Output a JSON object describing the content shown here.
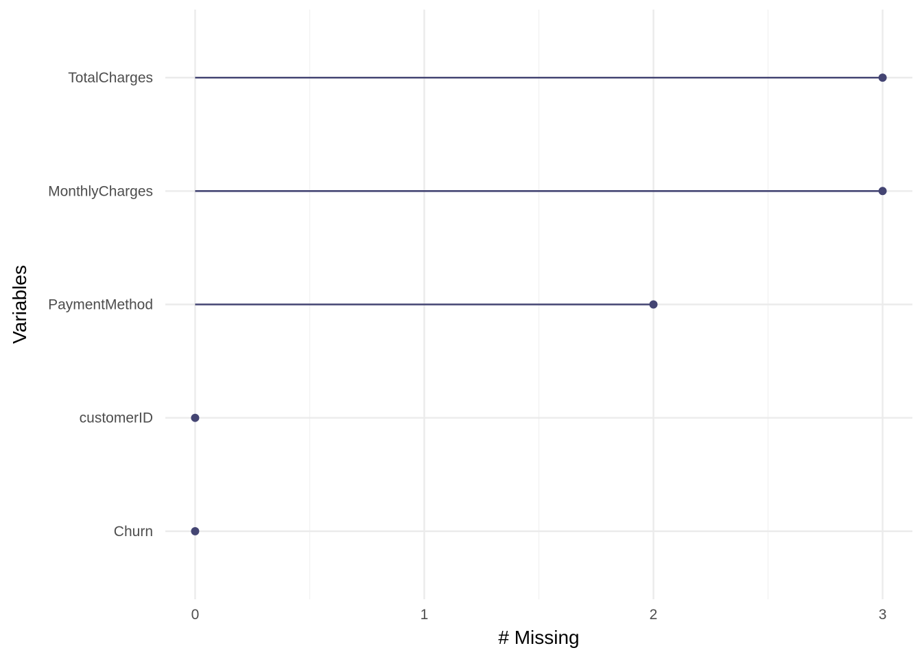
{
  "chart_data": {
    "type": "lollipop",
    "title": "",
    "xlabel": "# Missing",
    "ylabel": "Variables",
    "xlim": [
      -0.13,
      3.13
    ],
    "x_ticks": [
      0,
      1,
      2,
      3
    ],
    "x_tick_labels": [
      "0",
      "1",
      "2",
      "3"
    ],
    "x_minor_ticks": [
      0.5,
      1.5,
      2.5
    ],
    "grid": true,
    "legend": "none",
    "categories": [
      "TotalCharges",
      "MonthlyCharges",
      "PaymentMethod",
      "customerID",
      "Churn"
    ],
    "values": [
      3,
      3,
      2,
      0,
      0
    ],
    "colors": {
      "mark": "#444573",
      "grid_major": "#ebebeb",
      "grid_minor": "#f2f2f2",
      "tick_text": "#4d4d4d",
      "title_text": "#000000"
    }
  }
}
